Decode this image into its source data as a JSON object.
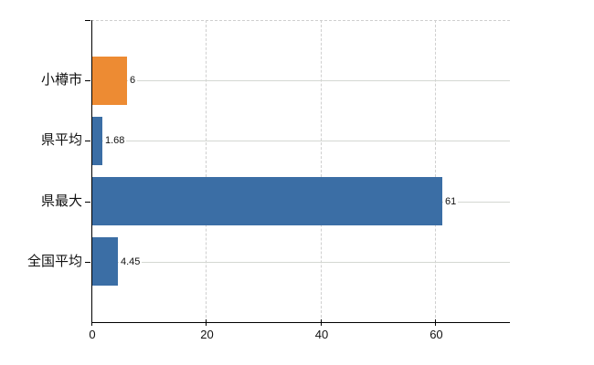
{
  "chart_data": {
    "type": "bar",
    "orientation": "horizontal",
    "title": "",
    "categories": [
      "小樽市",
      "県平均",
      "県最大",
      "全国平均"
    ],
    "values": [
      6,
      1.68,
      61,
      4.45
    ],
    "value_labels": [
      "6",
      "1.68",
      "61",
      "4.45"
    ],
    "bar_colors": [
      "#ED8B33",
      "#3B6EA5",
      "#3B6EA5",
      "#3B6EA5"
    ],
    "xlim": [
      0,
      73
    ],
    "x_ticks": [
      0,
      20,
      40,
      60
    ],
    "x_tick_labels": [
      "0",
      "20",
      "40",
      "60"
    ],
    "legend": null,
    "grid": {
      "vertical_style": "dashed",
      "horizontal_style": "solid",
      "top_border_style": "dashed",
      "color": "#CFCFCF"
    },
    "axis_color": "#000000",
    "text_color": "#111111",
    "background_color": "#FFFFFF"
  }
}
